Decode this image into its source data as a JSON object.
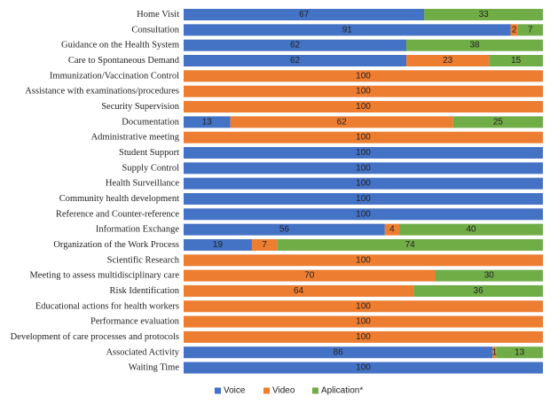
{
  "chart_data": {
    "type": "bar",
    "orientation": "horizontal",
    "stacked": true,
    "percent": true,
    "xlim": [
      0,
      100
    ],
    "title": "",
    "xlabel": "",
    "ylabel": "",
    "legend_position": "bottom",
    "categories": [
      "Home Visit",
      "Consultation",
      "Guidance on the Health System",
      "Care to Spontaneous Demand",
      "Immunization/Vaccination Control",
      "Assistance with examinations/procedures",
      "Security Supervision",
      "Documentation",
      "Administrative meeting",
      "Student Support",
      "Supply Control",
      "Health Surveillance",
      "Community health development",
      "Reference and Counter-reference",
      "Information Exchange",
      "Organization of the Work Process",
      "Scientific Research",
      "Meeting to assess multidisciplinary care",
      "Risk Identification",
      "Educational actions for health workers",
      "Performance evaluation",
      "Development of care processes and protocols",
      "Associated Activity",
      "Waiting Time"
    ],
    "series": [
      {
        "name": "Voice",
        "color": "#4472C4",
        "values": [
          67,
          91,
          62,
          62,
          0,
          0,
          0,
          13,
          0,
          100,
          100,
          100,
          100,
          100,
          56,
          19,
          0,
          0,
          0,
          0,
          0,
          0,
          86,
          100
        ]
      },
      {
        "name": "Video",
        "color": "#ED7D31",
        "values": [
          0,
          2,
          0,
          23,
          100,
          100,
          100,
          62,
          100,
          0,
          0,
          0,
          0,
          0,
          4,
          7,
          100,
          70,
          64,
          100,
          100,
          100,
          1,
          0
        ]
      },
      {
        "name": "Aplication*",
        "color": "#70AD47",
        "values": [
          33,
          7,
          38,
          15,
          0,
          0,
          0,
          25,
          0,
          0,
          0,
          0,
          0,
          0,
          40,
          74,
          0,
          30,
          36,
          0,
          0,
          0,
          13,
          0
        ]
      }
    ]
  }
}
